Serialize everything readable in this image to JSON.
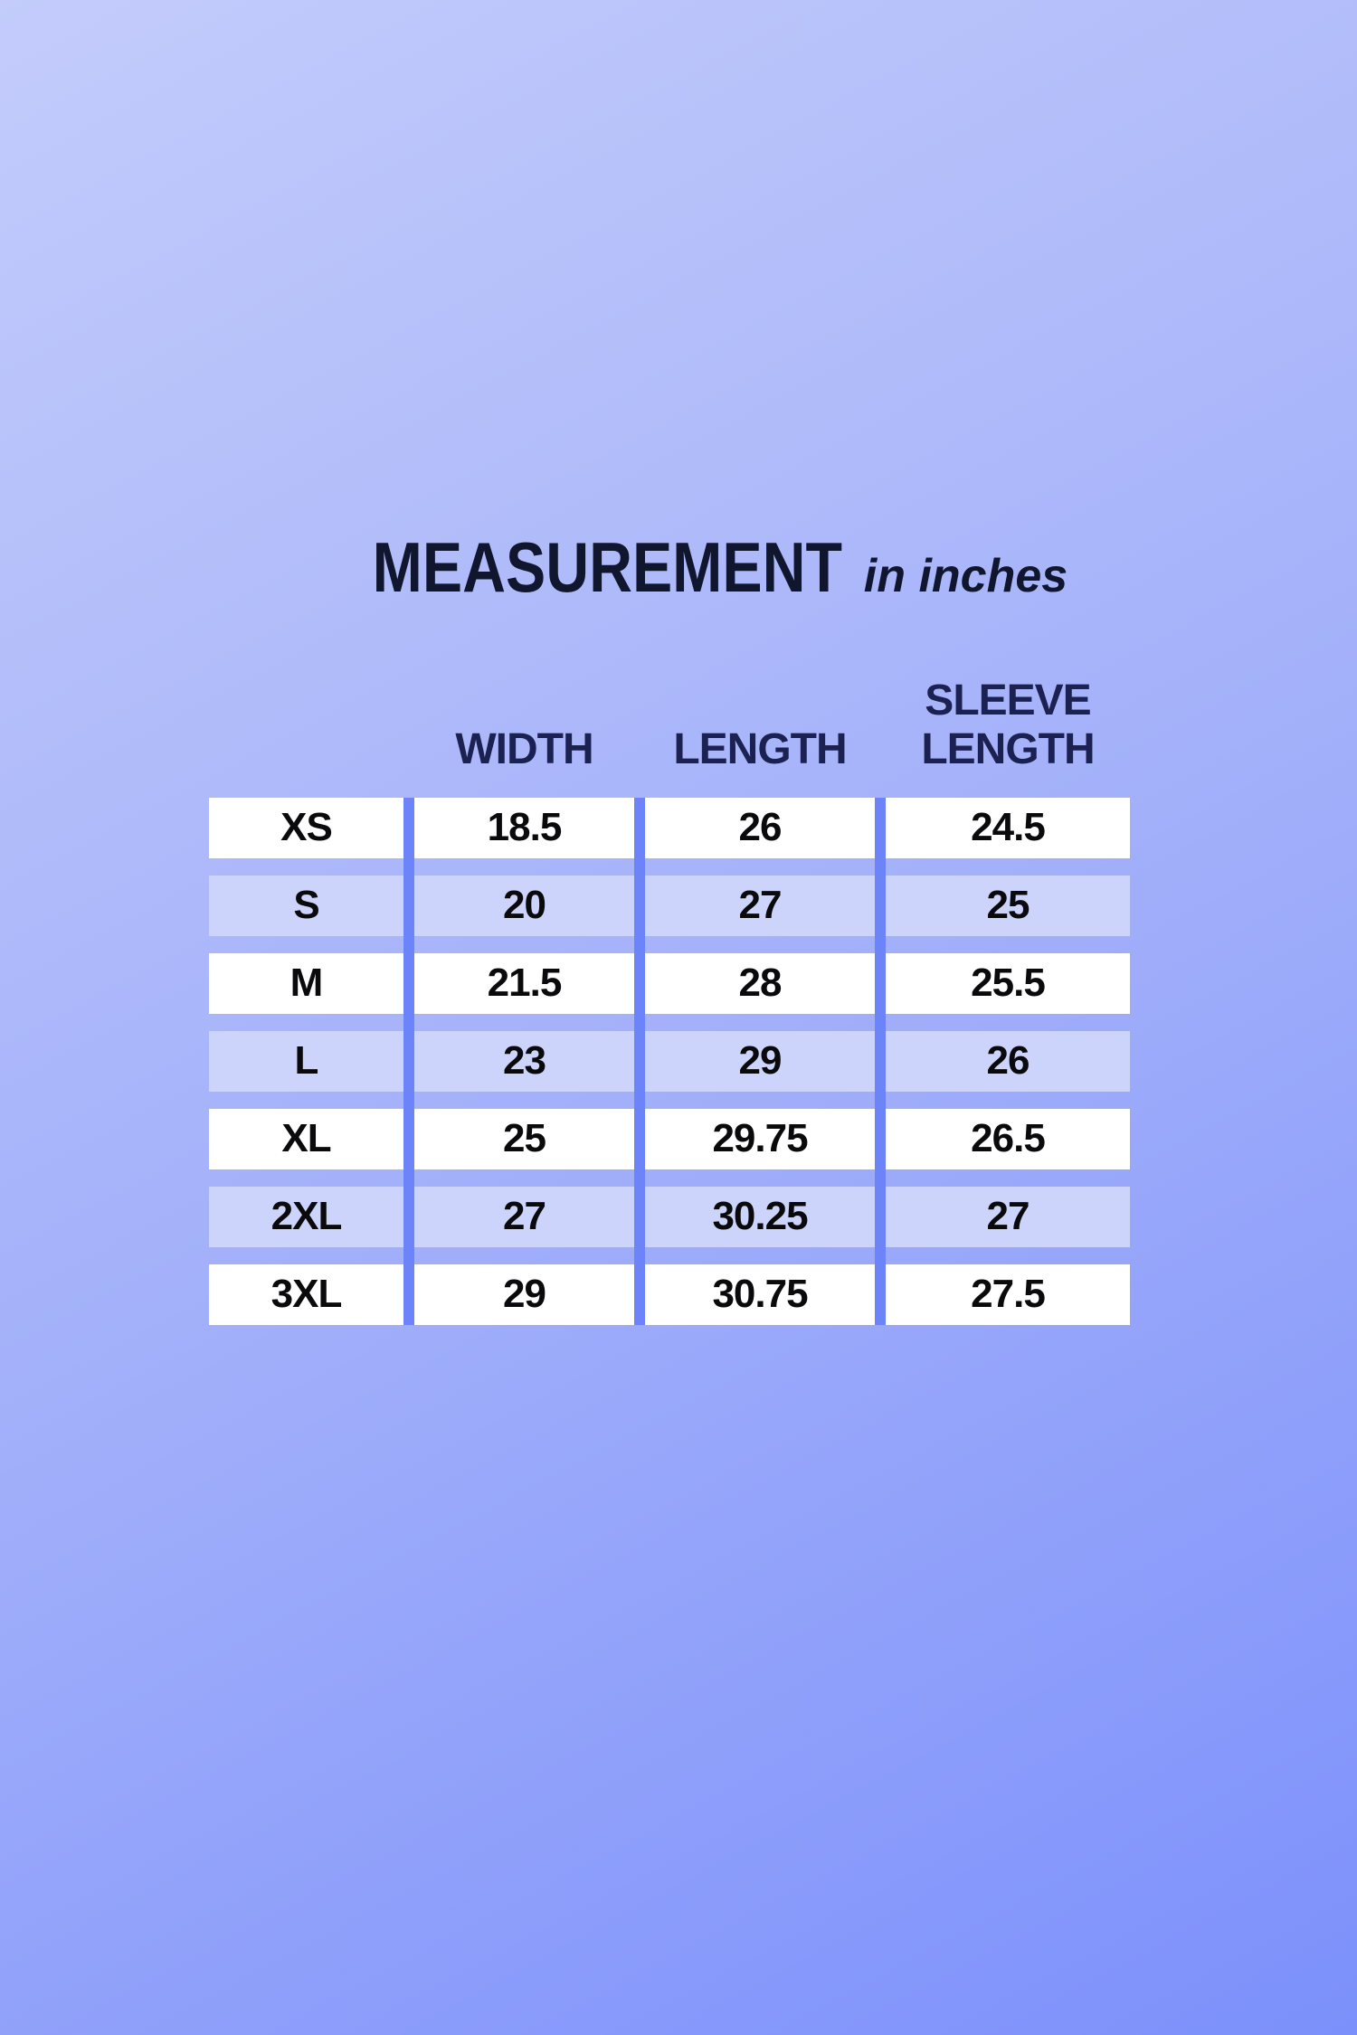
{
  "page_title": {
    "main": "MEASUREMENT",
    "qualifier": "in inches"
  },
  "chart_data": {
    "type": "table",
    "title": "MEASUREMENT",
    "subtitle": "in inches",
    "columns": [
      "",
      "WIDTH",
      "LENGTH",
      "SLEEVE LENGTH"
    ],
    "header_labels": {
      "width": "WIDTH",
      "length": "LENGTH",
      "sleeve_line1": "SLEEVE",
      "sleeve_line2": "LENGTH"
    },
    "rows": [
      [
        "XS",
        "18.5",
        "26",
        "24.5"
      ],
      [
        "S",
        "20",
        "27",
        "25"
      ],
      [
        "M",
        "21.5",
        "28",
        "25.5"
      ],
      [
        "L",
        "23",
        "29",
        "26"
      ],
      [
        "XL",
        "25",
        "29.75",
        "26.5"
      ],
      [
        "2XL",
        "27",
        "30.25",
        "27"
      ],
      [
        "3XL",
        "29",
        "30.75",
        "27.5"
      ]
    ]
  },
  "colors": {
    "bg_top": "#c3ccfb",
    "bg_mid": "#a5b2fa",
    "bg_bottom": "#7c90fb",
    "divider_blue": "#6d83f8",
    "row_white": "#ffffff",
    "row_lavender": "#cdd4fb",
    "title_navy": "#11162f",
    "header_navy": "#1b2150",
    "cell_black": "#0a0a0c"
  }
}
